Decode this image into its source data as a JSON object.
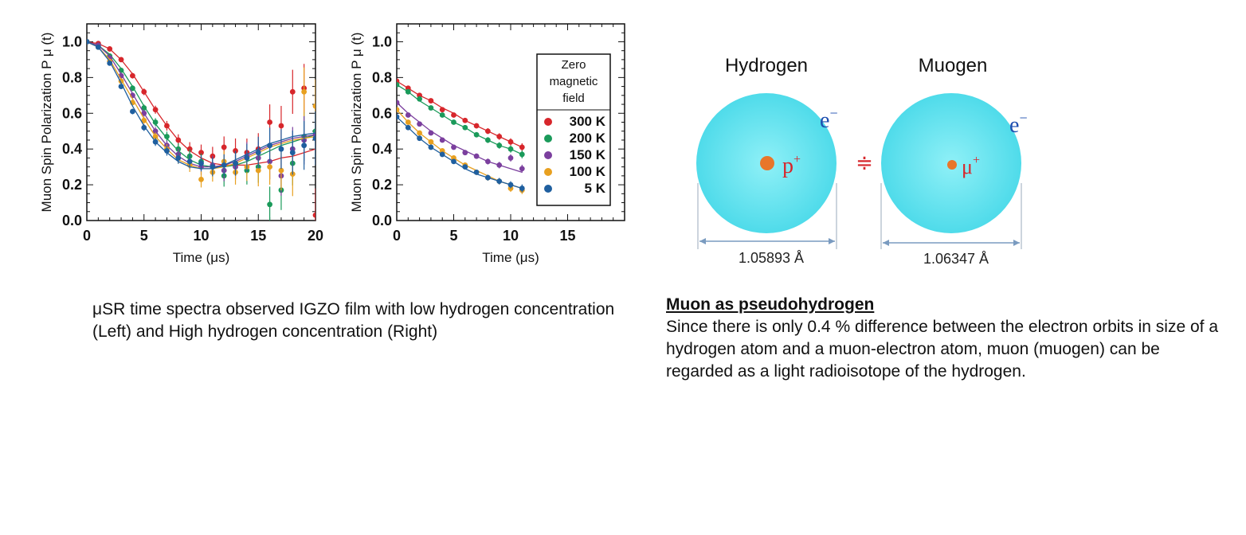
{
  "chart_data": [
    {
      "type": "scatter",
      "title": "",
      "xlabel": "Time (μs)",
      "ylabel": "Muon Spin Polarization P μ (t)",
      "xlim": [
        0,
        20
      ],
      "ylim": [
        0,
        1.1
      ],
      "x_ticks": [
        0,
        5,
        10,
        15,
        20
      ],
      "y_ticks": [
        0.0,
        0.2,
        0.4,
        0.6,
        0.8,
        1.0
      ],
      "x_tick_labels": [
        "0",
        "5",
        "10",
        "15",
        "20"
      ],
      "y_tick_labels": [
        "0.0",
        "0.2",
        "0.4",
        "0.6",
        "0.8",
        "1.0"
      ],
      "grid": false,
      "series": [
        {
          "color": "#d7262b",
          "x": [
            0,
            1,
            2,
            3,
            4,
            5,
            6,
            7,
            8,
            9,
            10,
            11,
            12,
            13,
            14,
            15,
            16,
            17,
            18,
            19,
            20
          ],
          "y": [
            1.0,
            0.99,
            0.96,
            0.9,
            0.81,
            0.72,
            0.62,
            0.53,
            0.45,
            0.4,
            0.38,
            0.36,
            0.41,
            0.39,
            0.38,
            0.4,
            0.55,
            0.53,
            0.72,
            0.74,
            0.03
          ],
          "fit": [
            1.0,
            0.99,
            0.96,
            0.9,
            0.82,
            0.72,
            0.62,
            0.53,
            0.45,
            0.39,
            0.35,
            0.32,
            0.31,
            0.31,
            0.31,
            0.32,
            0.33,
            0.35,
            0.36,
            0.38,
            0.4
          ]
        },
        {
          "color": "#1a9a5a",
          "x": [
            0,
            1,
            2,
            3,
            4,
            5,
            6,
            7,
            8,
            9,
            10,
            11,
            12,
            13,
            14,
            15,
            16,
            17,
            18,
            19,
            20
          ],
          "y": [
            1.0,
            0.98,
            0.92,
            0.84,
            0.74,
            0.63,
            0.55,
            0.47,
            0.4,
            0.36,
            0.33,
            0.3,
            0.25,
            0.32,
            0.28,
            0.3,
            0.09,
            0.17,
            0.32,
            0.47,
            0.5
          ],
          "fit": [
            1.0,
            0.98,
            0.93,
            0.85,
            0.75,
            0.64,
            0.54,
            0.46,
            0.39,
            0.34,
            0.31,
            0.3,
            0.3,
            0.31,
            0.33,
            0.36,
            0.39,
            0.42,
            0.44,
            0.46,
            0.48
          ]
        },
        {
          "color": "#7b3f9e",
          "x": [
            0,
            1,
            2,
            3,
            4,
            5,
            6,
            7,
            8,
            9,
            10,
            11,
            12,
            13,
            14,
            15,
            16,
            17,
            18,
            19,
            20
          ],
          "y": [
            1.0,
            0.98,
            0.91,
            0.81,
            0.7,
            0.6,
            0.5,
            0.42,
            0.37,
            0.33,
            0.3,
            0.31,
            0.28,
            0.3,
            0.36,
            0.35,
            0.33,
            0.25,
            0.4,
            0.45,
            0.48
          ],
          "fit": [
            1.0,
            0.98,
            0.92,
            0.82,
            0.71,
            0.6,
            0.5,
            0.42,
            0.36,
            0.32,
            0.3,
            0.3,
            0.31,
            0.33,
            0.36,
            0.39,
            0.42,
            0.44,
            0.46,
            0.47,
            0.48
          ]
        },
        {
          "color": "#e8a020",
          "x": [
            0,
            1,
            2,
            3,
            4,
            5,
            6,
            7,
            8,
            9,
            10,
            11,
            12,
            13,
            14,
            15,
            16,
            17,
            18,
            19,
            20
          ],
          "y": [
            1.0,
            0.97,
            0.89,
            0.78,
            0.66,
            0.56,
            0.47,
            0.4,
            0.35,
            0.31,
            0.23,
            0.27,
            0.33,
            0.27,
            0.3,
            0.28,
            0.3,
            0.28,
            0.26,
            0.72,
            0.64
          ],
          "fit": [
            1.0,
            0.97,
            0.9,
            0.79,
            0.68,
            0.57,
            0.47,
            0.4,
            0.34,
            0.31,
            0.29,
            0.29,
            0.3,
            0.32,
            0.35,
            0.38,
            0.41,
            0.43,
            0.45,
            0.46,
            0.47
          ]
        },
        {
          "color": "#1f5f9f",
          "x": [
            0,
            1,
            2,
            3,
            4,
            5,
            6,
            7,
            8,
            9,
            10,
            11,
            12,
            13,
            14,
            15,
            16,
            17,
            18,
            19,
            20
          ],
          "y": [
            1.0,
            0.97,
            0.88,
            0.75,
            0.61,
            0.52,
            0.44,
            0.39,
            0.35,
            0.33,
            0.32,
            0.3,
            0.31,
            0.32,
            0.35,
            0.38,
            0.42,
            0.4,
            0.38,
            0.42,
            0.46
          ],
          "fit": [
            1.0,
            0.97,
            0.89,
            0.77,
            0.64,
            0.53,
            0.44,
            0.38,
            0.33,
            0.3,
            0.29,
            0.29,
            0.31,
            0.34,
            0.37,
            0.4,
            0.43,
            0.45,
            0.47,
            0.48,
            0.49
          ]
        }
      ]
    },
    {
      "type": "scatter",
      "title": "",
      "xlabel": "Time (μs)",
      "ylabel": "Muon Spin Polarization P μ (t)",
      "xlim": [
        0,
        20
      ],
      "ylim": [
        0,
        1.1
      ],
      "x_ticks": [
        0,
        5,
        10,
        15
      ],
      "y_ticks": [
        0.0,
        0.2,
        0.4,
        0.6,
        0.8,
        1.0
      ],
      "x_tick_labels": [
        "0",
        "5",
        "10",
        "15"
      ],
      "y_tick_labels": [
        "0.0",
        "0.2",
        "0.4",
        "0.6",
        "0.8",
        "1.0"
      ],
      "grid": false,
      "legend": {
        "title": "Zero magnetic field",
        "title_lines": [
          "Zero",
          "magnetic",
          "field"
        ],
        "placement": "top-right",
        "entries": [
          "300 K",
          "200 K",
          "150 K",
          "100 K",
          "5 K"
        ]
      },
      "series": [
        {
          "name": "300 K",
          "color": "#d7262b",
          "x": [
            0,
            1,
            2,
            3,
            4,
            5,
            6,
            7,
            8,
            9,
            10,
            11
          ],
          "y": [
            0.78,
            0.74,
            0.7,
            0.67,
            0.62,
            0.59,
            0.56,
            0.53,
            0.5,
            0.47,
            0.44,
            0.41
          ],
          "fit": [
            0.78,
            0.74,
            0.7,
            0.67,
            0.63,
            0.6,
            0.56,
            0.53,
            0.5,
            0.47,
            0.44,
            0.41
          ]
        },
        {
          "name": "200 K",
          "color": "#1a9a5a",
          "x": [
            0,
            1,
            2,
            3,
            4,
            5,
            6,
            7,
            8,
            9,
            10,
            11
          ],
          "y": [
            0.76,
            0.72,
            0.68,
            0.63,
            0.59,
            0.55,
            0.52,
            0.48,
            0.45,
            0.42,
            0.4,
            0.37
          ],
          "fit": [
            0.76,
            0.72,
            0.67,
            0.63,
            0.59,
            0.55,
            0.52,
            0.48,
            0.45,
            0.42,
            0.4,
            0.37
          ]
        },
        {
          "name": "150 K",
          "color": "#7b3f9e",
          "x": [
            0,
            1,
            2,
            3,
            4,
            5,
            6,
            7,
            8,
            9,
            10,
            11
          ],
          "y": [
            0.66,
            0.59,
            0.54,
            0.49,
            0.45,
            0.41,
            0.38,
            0.36,
            0.33,
            0.31,
            0.35,
            0.29
          ],
          "fit": [
            0.66,
            0.6,
            0.55,
            0.5,
            0.46,
            0.42,
            0.39,
            0.36,
            0.33,
            0.31,
            0.29,
            0.27
          ]
        },
        {
          "name": "100 K",
          "color": "#e8a020",
          "x": [
            0,
            1,
            2,
            3,
            4,
            5,
            6,
            7,
            8,
            9,
            10,
            11
          ],
          "y": [
            0.62,
            0.55,
            0.49,
            0.44,
            0.39,
            0.35,
            0.31,
            0.27,
            0.24,
            0.22,
            0.18,
            0.17
          ],
          "fit": [
            0.62,
            0.55,
            0.49,
            0.44,
            0.39,
            0.35,
            0.31,
            0.28,
            0.25,
            0.22,
            0.2,
            0.18
          ]
        },
        {
          "name": "5 K",
          "color": "#1f5f9f",
          "x": [
            0,
            1,
            2,
            3,
            4,
            5,
            6,
            7,
            8,
            9,
            10,
            11
          ],
          "y": [
            0.58,
            0.52,
            0.46,
            0.41,
            0.37,
            0.33,
            0.3,
            0.27,
            0.24,
            0.22,
            0.2,
            0.18
          ],
          "fit": [
            0.58,
            0.52,
            0.46,
            0.41,
            0.37,
            0.33,
            0.29,
            0.26,
            0.24,
            0.22,
            0.2,
            0.18
          ]
        }
      ]
    }
  ],
  "diagram": {
    "hydrogen": {
      "title": "Hydrogen",
      "nucleus": "p",
      "nucleus_charge": "+",
      "electron": "e",
      "electron_charge": "−",
      "diameter": "1.05893 Å"
    },
    "muogen": {
      "title": "Muogen",
      "nucleus": "μ",
      "nucleus_charge": "+",
      "electron": "e",
      "electron_charge": "−",
      "diameter": "1.06347 Å"
    },
    "relation_symbol": "≑",
    "colors": {
      "sphere": "#5fe3f0",
      "sphere_edge": "#3fc8dc",
      "nucleus": "#e8762a",
      "nucleus_label": "#d7262b",
      "electron_label": "#1f4fb0"
    }
  },
  "captions": {
    "left": "μSR time spectra observed IGZO film with low hydrogen concentration (Left) and High hydrogen concentration (Right)",
    "right_heading": "Muon as pseudohydrogen",
    "right_body": "Since there is only 0.4 % difference between the electron orbits in size of a hydrogen atom and a muon-electron atom, muon (muogen) can be regarded as a light radioisotope of the hydrogen."
  }
}
